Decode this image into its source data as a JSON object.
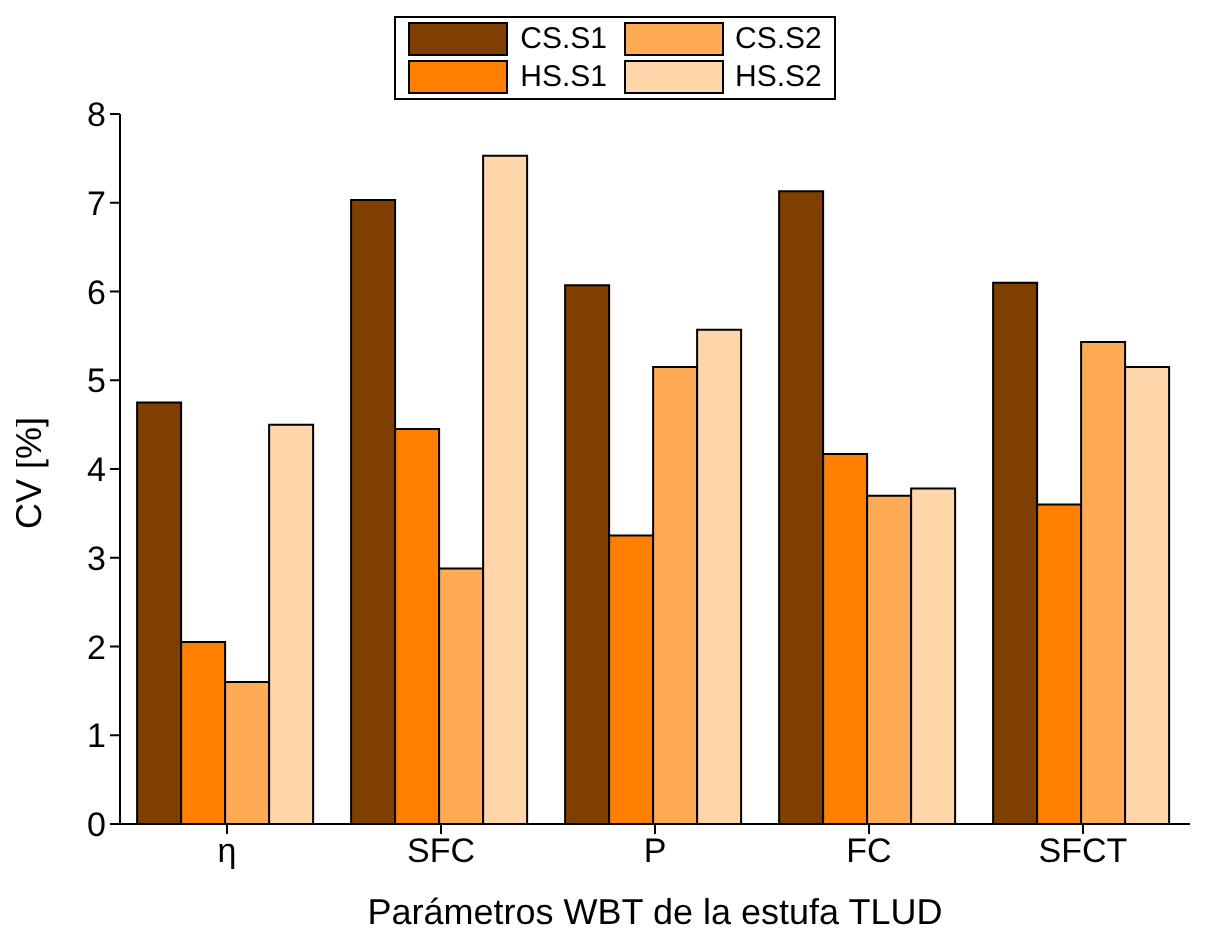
{
  "chart_data": {
    "type": "bar",
    "xlabel": "Parámetros WBT de la estufa TLUD",
    "ylabel": "CV [%]",
    "categories": [
      "η",
      "SFC",
      "P",
      "FC",
      "SFCT"
    ],
    "series": [
      {
        "name": "CS.S1",
        "color": "#7f3f00",
        "values": [
          4.75,
          7.03,
          6.07,
          7.13,
          6.1
        ]
      },
      {
        "name": "HS.S1",
        "color": "#ff8000",
        "values": [
          2.05,
          4.45,
          3.25,
          4.17,
          3.6
        ]
      },
      {
        "name": "CS.S2",
        "color": "#ffaa55",
        "values": [
          1.6,
          2.88,
          5.15,
          3.7,
          5.43
        ]
      },
      {
        "name": "HS.S2",
        "color": "#ffd5aa",
        "values": [
          4.5,
          7.53,
          5.57,
          3.78,
          5.15
        ]
      }
    ],
    "ylim": [
      0,
      8
    ],
    "yticks": [
      0,
      1,
      2,
      3,
      4,
      5,
      6,
      7,
      8
    ],
    "grid": false,
    "legend": "top"
  }
}
